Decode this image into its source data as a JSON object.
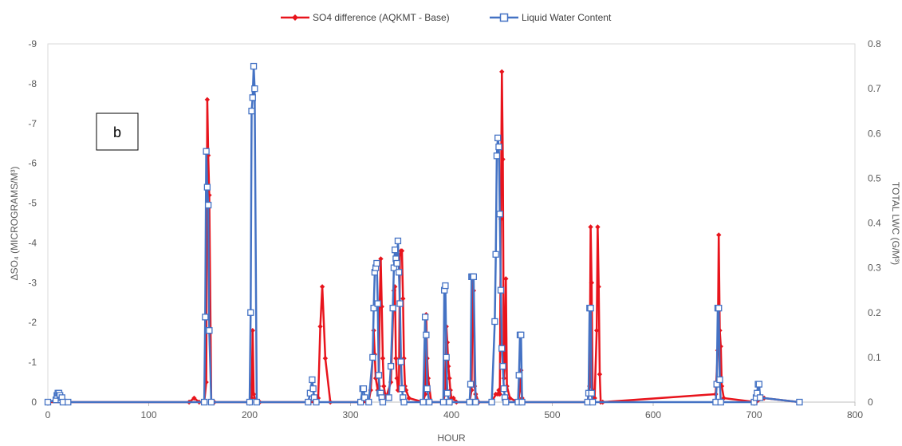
{
  "chart_data": {
    "type": "line",
    "panel_label": "b",
    "xlabel": "HOUR",
    "ylabel_left": "ΔSO₄ (MICROGRAMS/M³)",
    "ylabel_right": "TOTAL LWC (G/M³)",
    "xlim": [
      0,
      800
    ],
    "ylim_left": [
      0,
      -9
    ],
    "ylim_right": [
      0,
      0.8
    ],
    "x_ticks": [
      0,
      100,
      200,
      300,
      400,
      500,
      600,
      700,
      800
    ],
    "y_left_ticks": [
      0,
      -1,
      -2,
      -3,
      -4,
      -5,
      -6,
      -7,
      -8,
      -9
    ],
    "y_right_ticks": [
      0,
      0.1,
      0.2,
      0.3,
      0.4,
      0.5,
      0.6,
      0.7,
      0.8
    ],
    "grid": false,
    "legend_position": "top",
    "series": [
      {
        "name": "SO4 difference (AQKMT - Base)",
        "axis": "left",
        "color": "#e8141c",
        "marker": "diamond",
        "x": [
          0,
          140,
          145,
          150,
          155,
          157,
          158,
          159,
          160,
          162,
          165,
          200,
          202,
          203,
          204,
          206,
          210,
          265,
          268,
          270,
          272,
          275,
          280,
          318,
          320,
          322,
          323,
          324,
          325,
          327,
          328,
          329,
          330,
          331,
          332,
          333,
          335,
          340,
          343,
          344,
          345,
          346,
          347,
          348,
          349,
          350,
          351,
          352,
          353,
          354,
          355,
          358,
          372,
          374,
          375,
          376,
          377,
          380,
          392,
          394,
          395,
          396,
          397,
          398,
          399,
          400,
          402,
          405,
          418,
          420,
          421,
          422,
          423,
          424,
          427,
          440,
          444,
          446,
          447,
          448,
          449,
          450,
          451,
          452,
          453,
          454,
          455,
          458,
          466,
          468,
          469,
          470,
          472,
          535,
          537,
          538,
          539,
          540,
          542,
          544,
          545,
          546,
          547,
          548,
          550,
          662,
          664,
          665,
          666,
          667,
          668,
          670,
          702,
          710,
          745
        ],
        "y": [
          0,
          0,
          -0.1,
          0,
          0,
          -0.5,
          -7.6,
          -6.2,
          -5.2,
          0,
          0,
          0,
          -0.1,
          -1.8,
          -0.2,
          0,
          0,
          0,
          -0.1,
          -1.9,
          -2.9,
          -1.1,
          0,
          0,
          -0.3,
          -1.1,
          -1.8,
          -1.2,
          -0.6,
          -0.3,
          -0.4,
          -2.5,
          -3.6,
          -2.4,
          -1.1,
          -0.4,
          -0.1,
          -0.5,
          -2.8,
          -2.9,
          -1.1,
          -0.6,
          -0.3,
          -0.3,
          -3.7,
          -3.8,
          -3.8,
          -2.6,
          -1.1,
          -0.4,
          -0.3,
          -0.1,
          0,
          -0.2,
          -2.2,
          -1.1,
          -0.6,
          0,
          0,
          -0.3,
          -1.9,
          -1.5,
          -0.9,
          -0.6,
          -0.3,
          -0.1,
          -0.1,
          0,
          0,
          -0.3,
          -3.1,
          -2.8,
          -0.4,
          -0.2,
          0,
          0,
          -0.2,
          -0.2,
          -0.3,
          -0.2,
          -4.6,
          -8.3,
          -6.1,
          -0.6,
          -0.9,
          -3.1,
          -0.4,
          -0.1,
          0,
          -0.3,
          -0.8,
          -0.1,
          0,
          0,
          -0.4,
          -4.4,
          -3.0,
          -0.3,
          -0.1,
          -1.8,
          -4.4,
          -2.9,
          -0.7,
          0,
          0,
          -0.2,
          -1.3,
          -4.2,
          -1.8,
          -1.4,
          -0.4,
          -0.1,
          0,
          -0.1,
          0
        ]
      },
      {
        "name": "Liquid Water Content",
        "axis": "right",
        "color": "#4472c4",
        "marker": "square",
        "x": [
          0,
          8,
          9,
          10,
          11,
          12,
          13,
          14,
          15,
          20,
          155,
          156,
          157,
          158,
          159,
          160,
          162,
          200,
          201,
          202,
          203,
          204,
          205,
          207,
          258,
          260,
          262,
          263,
          264,
          266,
          310,
          312,
          313,
          314,
          318,
          322,
          323,
          324,
          325,
          326,
          327,
          328,
          329,
          330,
          331,
          332,
          338,
          340,
          342,
          343,
          344,
          345,
          346,
          347,
          348,
          349,
          350,
          351,
          352,
          353,
          372,
          374,
          375,
          376,
          378,
          392,
          393,
          394,
          395,
          396,
          398,
          418,
          419,
          420,
          421,
          422,
          424,
          440,
          443,
          444,
          445,
          446,
          447,
          448,
          449,
          450,
          451,
          452,
          453,
          454,
          466,
          467,
          468,
          469,
          470,
          535,
          536,
          537,
          538,
          539,
          540,
          662,
          663,
          664,
          665,
          666,
          667,
          700,
          702,
          703,
          704,
          705,
          706,
          745
        ],
        "y": [
          0,
          0.005,
          0.015,
          0.02,
          0.02,
          0.015,
          0.005,
          0.01,
          0,
          0,
          0,
          0.19,
          0.56,
          0.48,
          0.44,
          0.16,
          0,
          0,
          0.2,
          0.65,
          0.68,
          0.75,
          0.7,
          0,
          0,
          0.02,
          0.05,
          0.03,
          0.01,
          0,
          0,
          0.03,
          0.03,
          0.01,
          0,
          0.1,
          0.21,
          0.29,
          0.3,
          0.31,
          0.22,
          0.06,
          0.02,
          0.02,
          0.01,
          0,
          0.01,
          0.08,
          0.21,
          0.3,
          0.34,
          0.32,
          0.31,
          0.36,
          0.29,
          0.22,
          0.09,
          0.03,
          0.01,
          0,
          0,
          0.19,
          0.15,
          0.03,
          0,
          0,
          0.25,
          0.26,
          0.1,
          0.02,
          0,
          0,
          0.04,
          0.28,
          0.28,
          0.28,
          0,
          0,
          0.18,
          0.33,
          0.55,
          0.59,
          0.57,
          0.42,
          0.25,
          0.12,
          0.08,
          0.03,
          0.01,
          0,
          0,
          0.06,
          0.15,
          0.15,
          0,
          0,
          0.02,
          0.21,
          0.21,
          0.02,
          0,
          0,
          0.04,
          0.21,
          0.21,
          0.05,
          0,
          0,
          0.01,
          0.02,
          0.04,
          0.04,
          0.01,
          0
        ]
      }
    ]
  }
}
